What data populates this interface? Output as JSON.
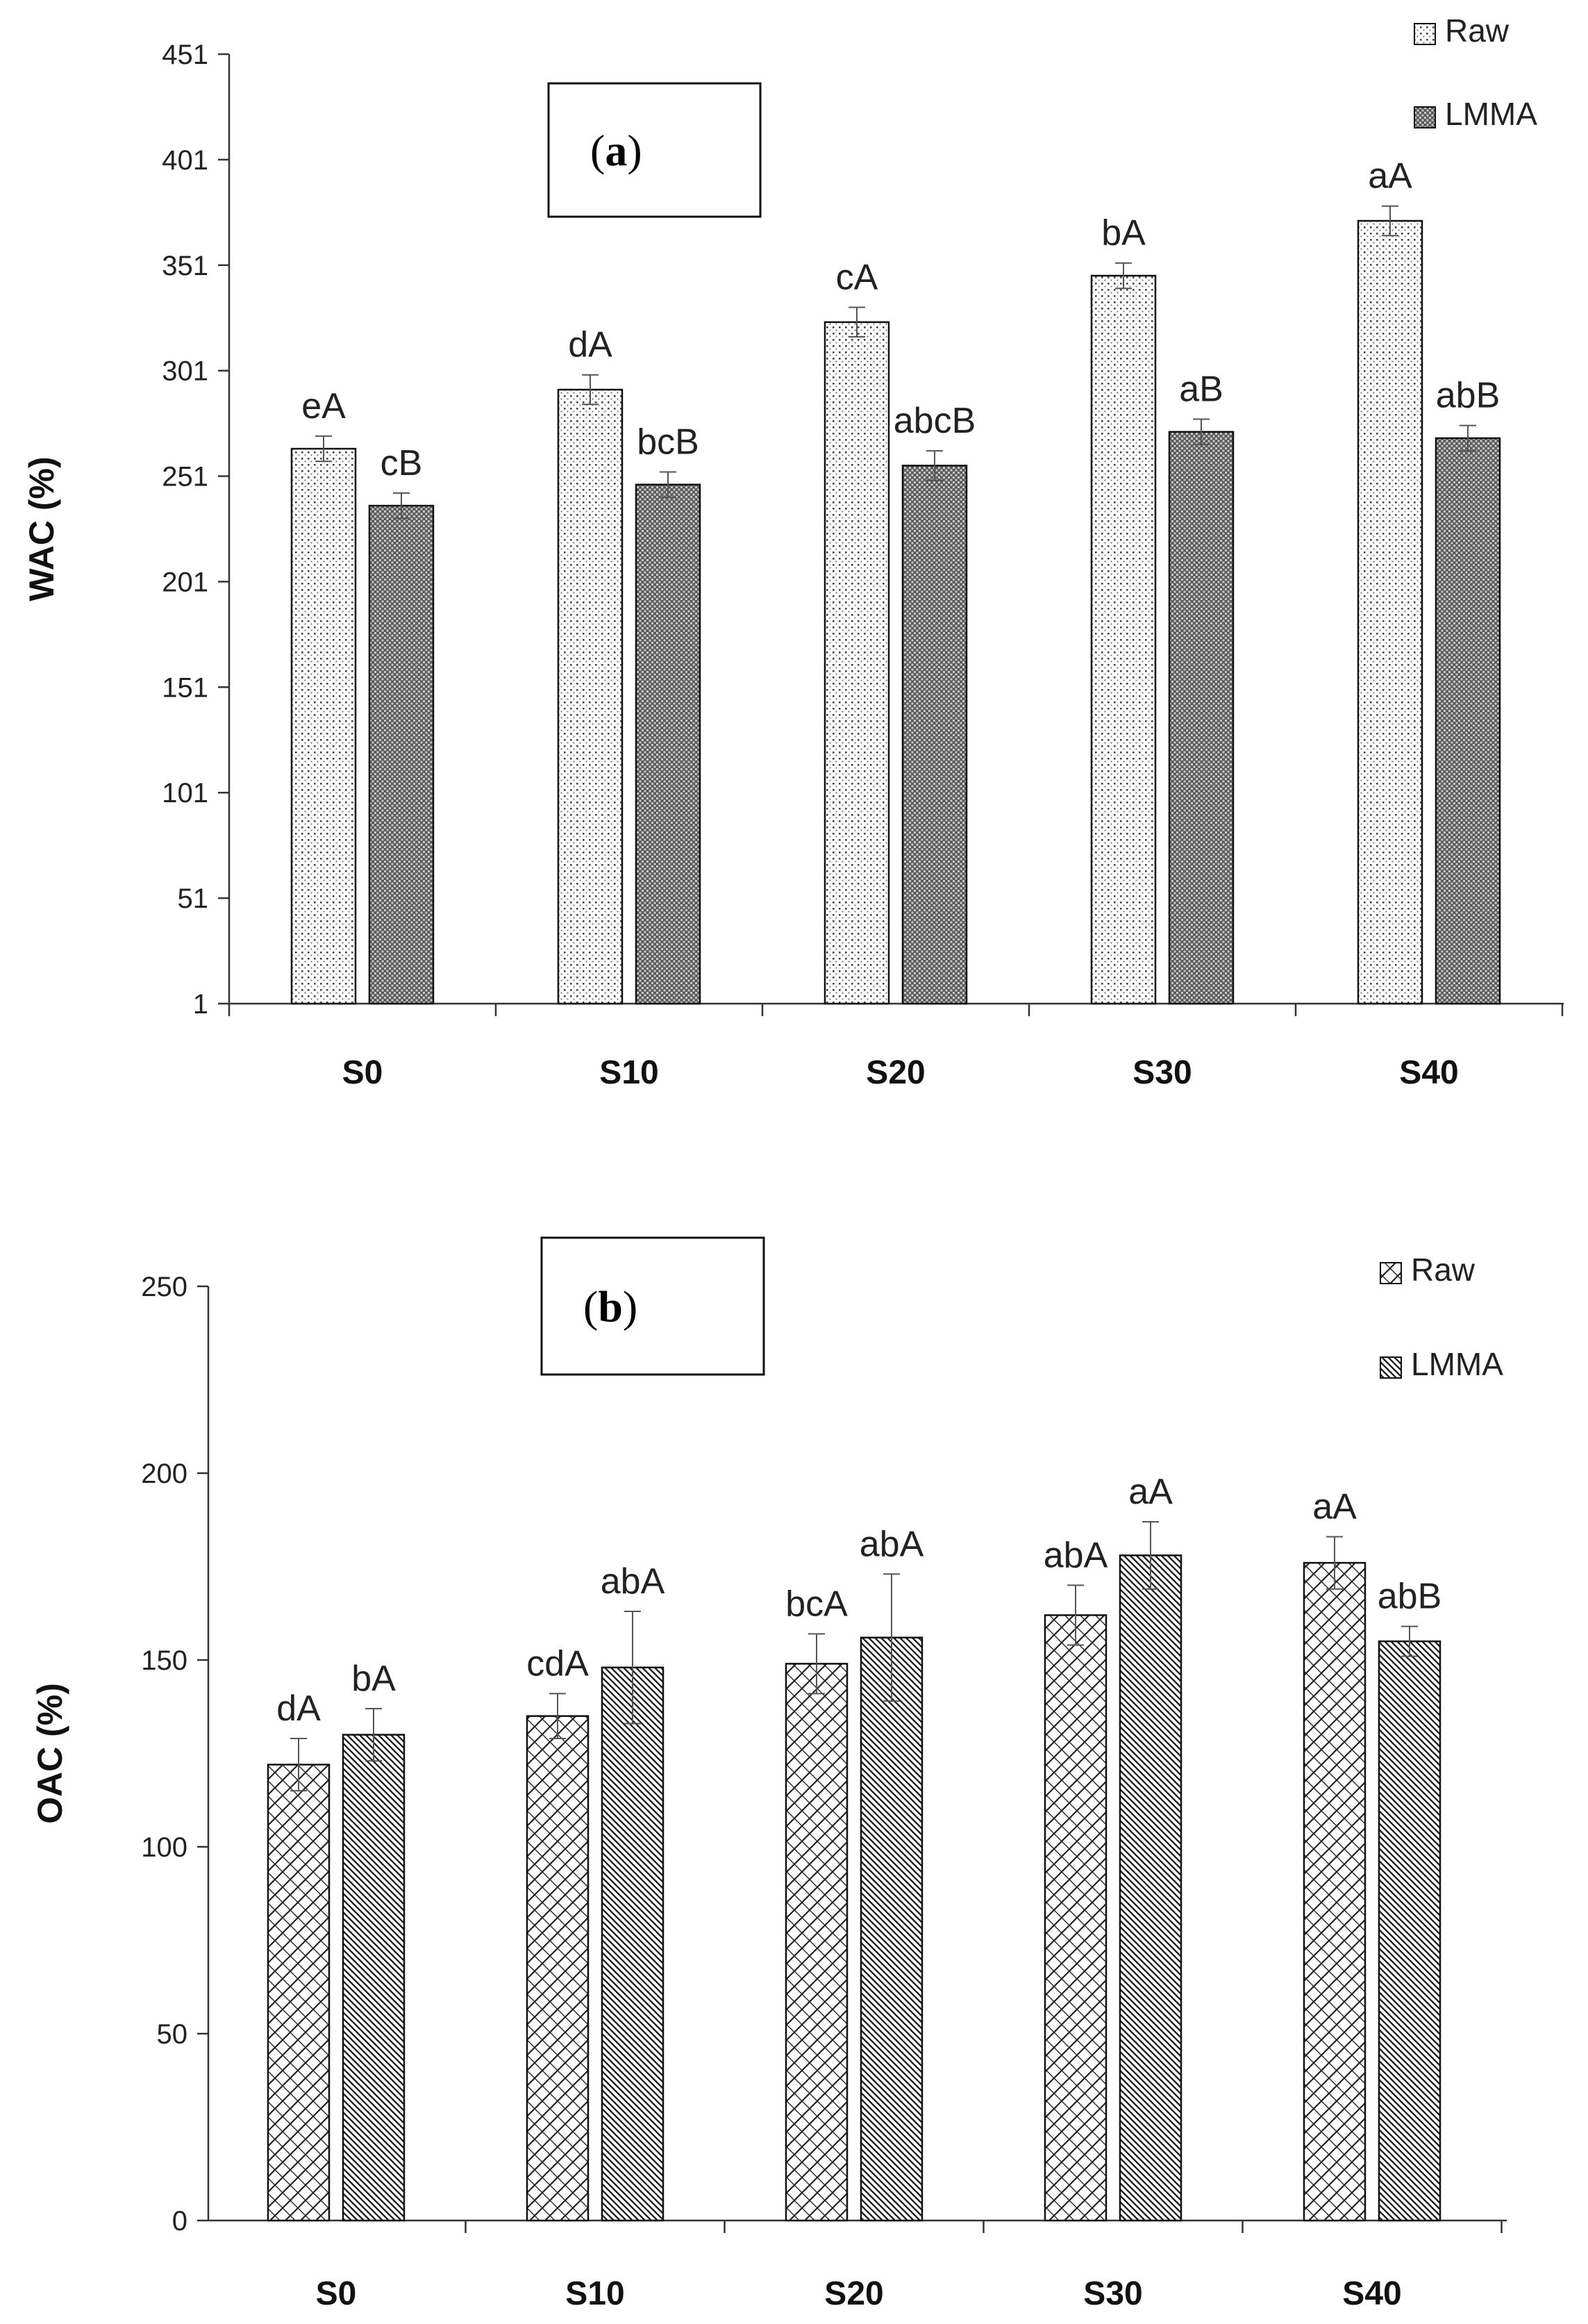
{
  "chart_data": [
    {
      "type": "bar",
      "panel_label": "(a)",
      "paren_open": "(",
      "panel_letter": "a",
      "paren_close": ")",
      "ylabel": "WAC (%)",
      "xlabel": "",
      "ylim": [
        1,
        451
      ],
      "yticks": [
        1,
        51,
        101,
        151,
        201,
        251,
        301,
        351,
        401,
        451
      ],
      "categories": [
        "S0",
        "S10",
        "S20",
        "S30",
        "S40"
      ],
      "legend_position": "top-right",
      "series": [
        {
          "name": "Raw",
          "pattern": "dots",
          "values": [
            264,
            292,
            324,
            346,
            372
          ],
          "errors": [
            6,
            7,
            7,
            6,
            7
          ],
          "labels": [
            "eA",
            "dA",
            "cA",
            "bA",
            "aA"
          ]
        },
        {
          "name": "LMMA",
          "pattern": "dense",
          "values": [
            237,
            247,
            256,
            272,
            269
          ],
          "errors": [
            6,
            6,
            7,
            6,
            6
          ],
          "labels": [
            "cB",
            "bcB",
            "abcB",
            "aB",
            "abB"
          ]
        }
      ]
    },
    {
      "type": "bar",
      "panel_label": "(b)",
      "paren_open": "(",
      "panel_letter": "b",
      "paren_close": ")",
      "ylabel": "OAC (%)",
      "xlabel": "",
      "ylim": [
        0,
        250
      ],
      "yticks": [
        0,
        50,
        100,
        150,
        200,
        250
      ],
      "categories": [
        "S0",
        "S10",
        "S20",
        "S30",
        "S40"
      ],
      "legend_position": "top-right",
      "series": [
        {
          "name": "Raw",
          "pattern": "crosshatch",
          "values": [
            122,
            135,
            149,
            162,
            176
          ],
          "errors": [
            7,
            6,
            8,
            8,
            7
          ],
          "labels": [
            "dA",
            "cdA",
            "bcA",
            "abA",
            "aA"
          ]
        },
        {
          "name": "LMMA",
          "pattern": "diagonal",
          "values": [
            130,
            148,
            156,
            178,
            155
          ],
          "errors": [
            7,
            15,
            17,
            9,
            4
          ],
          "labels": [
            "bA",
            "abA",
            "abA",
            "aA",
            "abB"
          ]
        }
      ]
    }
  ]
}
